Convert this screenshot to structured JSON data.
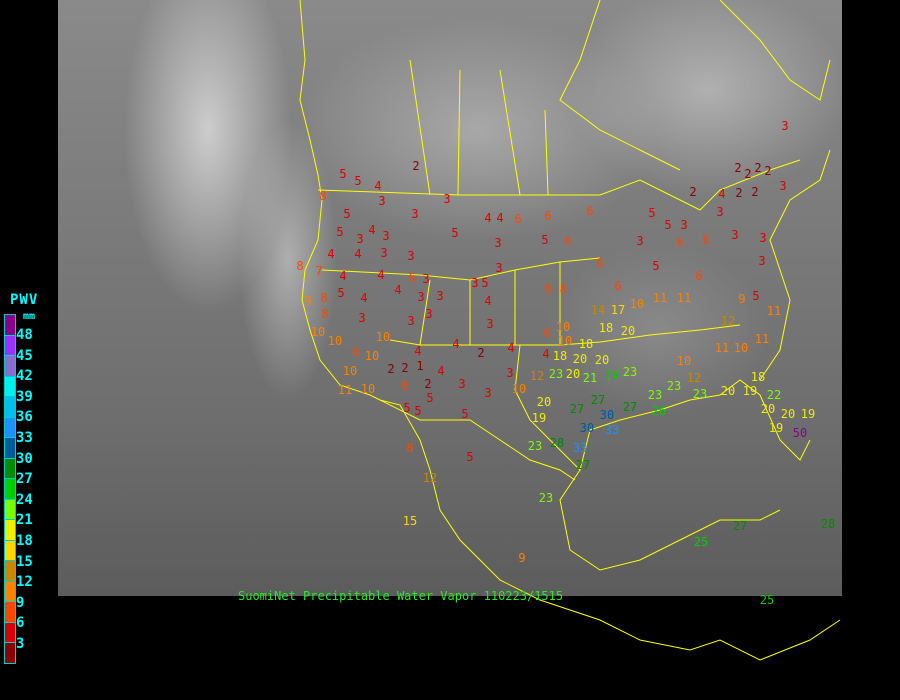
{
  "caption": "SuomiNet Precipitable Water Vapor 110223/1515",
  "legend": {
    "title": "PWV",
    "unit": "mm",
    "labels": [
      "48",
      "45",
      "42",
      "39",
      "36",
      "33",
      "30",
      "27",
      "24",
      "21",
      "18",
      "15",
      "12",
      "9",
      "6",
      "3"
    ],
    "colors": [
      "#8b008b",
      "#9b30ff",
      "#8470d0",
      "#00eeee",
      "#00bfee",
      "#1e90ff",
      "#005a9c",
      "#008b00",
      "#00cd00",
      "#7cfc00",
      "#eeee00",
      "#ffd700",
      "#cd8500",
      "#ff8000",
      "#ff4500",
      "#dd0000",
      "#8b0000"
    ]
  },
  "map": {
    "border_color": "#ffff00",
    "background": "GOES infrared satellite image"
  },
  "stations": [
    2,
    5,
    5,
    4,
    8,
    5,
    3,
    3,
    3,
    4,
    4,
    6,
    6,
    6,
    5,
    4,
    3,
    3,
    4,
    4,
    3,
    3,
    5,
    3,
    5,
    6,
    8,
    7,
    4,
    4,
    3,
    3,
    3,
    5,
    3,
    4,
    8,
    8,
    9,
    8,
    5,
    4,
    4,
    6,
    3,
    8,
    3,
    3,
    3,
    3,
    10,
    14,
    17,
    10,
    11,
    11,
    9,
    5,
    11,
    10,
    10,
    6,
    10,
    10,
    4,
    4,
    2,
    4,
    6,
    10,
    18,
    18,
    20,
    1,
    2,
    2,
    4,
    2,
    3,
    4,
    18,
    20,
    20,
    10,
    11,
    10,
    8,
    5,
    3,
    3,
    10,
    12,
    23,
    20,
    21,
    24,
    23,
    10,
    12,
    11,
    10,
    11,
    12,
    18,
    20,
    19,
    27,
    27,
    30,
    27,
    30,
    33,
    26,
    23,
    23,
    23,
    20,
    19,
    22,
    20,
    20,
    19,
    19,
    50,
    23,
    28,
    33,
    8,
    5,
    12,
    23,
    27,
    15,
    9,
    25,
    27,
    25,
    28,
    5,
    5,
    5,
    3,
    2,
    2,
    2,
    2,
    2,
    3,
    2,
    2,
    3,
    5,
    5,
    3,
    6,
    6,
    3,
    3,
    6,
    3,
    5,
    6,
    6,
    3,
    4
  ]
}
